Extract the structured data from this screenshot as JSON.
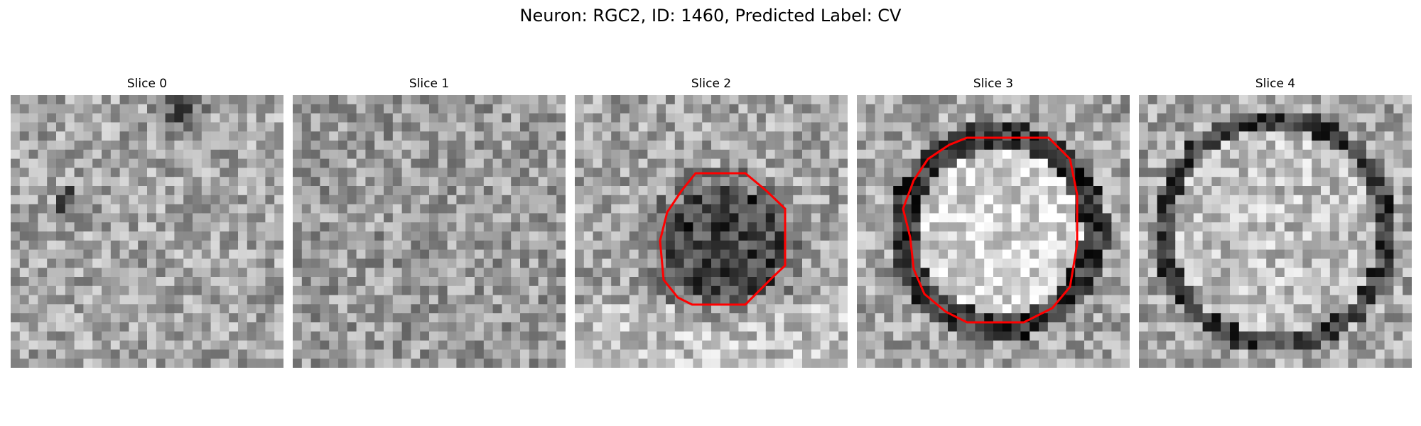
{
  "figure": {
    "title": "Neuron: RGC2, ID: 1460, Predicted Label: CV",
    "contour_color": "#ff0000",
    "colormap": "grayscale",
    "panels": [
      {
        "title": "Slice 0",
        "pattern": "noise-dark-top",
        "contour": false
      },
      {
        "title": "Slice 1",
        "pattern": "noise",
        "contour": false
      },
      {
        "title": "Slice 2",
        "pattern": "dark-blob",
        "contour": true
      },
      {
        "title": "Slice 3",
        "pattern": "ring-bright-center",
        "contour": true
      },
      {
        "title": "Slice 4",
        "pattern": "large-ring",
        "contour": false
      }
    ]
  }
}
